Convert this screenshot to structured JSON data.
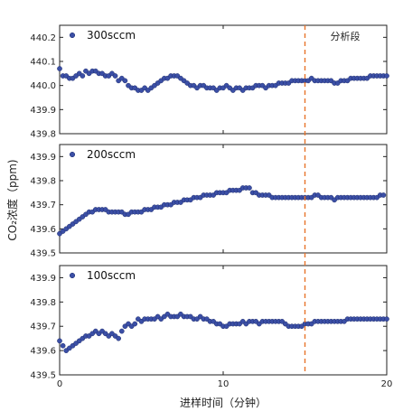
{
  "chart_data": {
    "type": "scatter",
    "xlabel": "进样时间（分钟）",
    "ylabel": "CO₂浓度（ppm)",
    "xlim": [
      0,
      20
    ],
    "x_ticks": [
      "0",
      "10",
      "20"
    ],
    "marker_color": "#3b4fa6",
    "marker_edge": "#1f2d6e",
    "dashed_line_color": "#e8742a",
    "dashed_line_x": 15,
    "annotation": "分析段",
    "panels": [
      {
        "legend": "300sccm",
        "ylim": [
          439.8,
          440.25
        ],
        "y_ticks": [
          "440.2",
          "440.1",
          "440.0",
          "439.9",
          "439.8"
        ],
        "x": [
          0,
          0.2,
          0.4,
          0.6,
          0.8,
          1.0,
          1.2,
          1.4,
          1.6,
          1.8,
          2.0,
          2.2,
          2.4,
          2.6,
          2.8,
          3.0,
          3.2,
          3.4,
          3.6,
          3.8,
          4.0,
          4.2,
          4.4,
          4.6,
          4.8,
          5.0,
          5.2,
          5.4,
          5.6,
          5.8,
          6.0,
          6.2,
          6.4,
          6.6,
          6.8,
          7.0,
          7.2,
          7.4,
          7.6,
          7.8,
          8.0,
          8.2,
          8.4,
          8.6,
          8.8,
          9.0,
          9.2,
          9.4,
          9.6,
          9.8,
          10.0,
          10.2,
          10.4,
          10.6,
          10.8,
          11.0,
          11.2,
          11.4,
          11.6,
          11.8,
          12.0,
          12.2,
          12.4,
          12.6,
          12.8,
          13.0,
          13.2,
          13.4,
          13.6,
          13.8,
          14.0,
          14.2,
          14.4,
          14.6,
          14.8,
          15.0,
          15.2,
          15.4,
          15.6,
          15.8,
          16.0,
          16.2,
          16.4,
          16.6,
          16.8,
          17.0,
          17.2,
          17.4,
          17.6,
          17.8,
          18.0,
          18.2,
          18.4,
          18.6,
          18.8,
          19.0,
          19.2,
          19.4,
          19.6,
          19.8,
          20.0
        ],
        "y": [
          440.07,
          440.04,
          440.04,
          440.03,
          440.03,
          440.04,
          440.05,
          440.04,
          440.06,
          440.05,
          440.06,
          440.06,
          440.05,
          440.05,
          440.04,
          440.04,
          440.05,
          440.04,
          440.02,
          440.03,
          440.02,
          440.0,
          439.99,
          439.99,
          439.98,
          439.98,
          439.99,
          439.98,
          439.99,
          440.0,
          440.01,
          440.02,
          440.03,
          440.03,
          440.04,
          440.04,
          440.04,
          440.03,
          440.02,
          440.01,
          440.0,
          440.0,
          439.99,
          440.0,
          440.0,
          439.99,
          439.99,
          439.99,
          439.98,
          439.99,
          439.99,
          440.0,
          439.99,
          439.98,
          439.99,
          439.99,
          439.98,
          439.99,
          439.99,
          439.99,
          440.0,
          440.0,
          440.0,
          439.99,
          440.0,
          440.0,
          440.0,
          440.01,
          440.01,
          440.01,
          440.01,
          440.02,
          440.02,
          440.02,
          440.02,
          440.02,
          440.02,
          440.03,
          440.02,
          440.02,
          440.02,
          440.02,
          440.02,
          440.02,
          440.01,
          440.01,
          440.02,
          440.02,
          440.02,
          440.03,
          440.03,
          440.03,
          440.03,
          440.03,
          440.03,
          440.04,
          440.04,
          440.04,
          440.04,
          440.04,
          440.04
        ]
      },
      {
        "legend": "200sccm",
        "ylim": [
          439.5,
          439.95
        ],
        "y_ticks": [
          "439.9",
          "439.8",
          "439.7",
          "439.6",
          "439.5"
        ],
        "x": [
          0,
          0.2,
          0.4,
          0.6,
          0.8,
          1.0,
          1.2,
          1.4,
          1.6,
          1.8,
          2.0,
          2.2,
          2.4,
          2.6,
          2.8,
          3.0,
          3.2,
          3.4,
          3.6,
          3.8,
          4.0,
          4.2,
          4.4,
          4.6,
          4.8,
          5.0,
          5.2,
          5.4,
          5.6,
          5.8,
          6.0,
          6.2,
          6.4,
          6.6,
          6.8,
          7.0,
          7.2,
          7.4,
          7.6,
          7.8,
          8.0,
          8.2,
          8.4,
          8.6,
          8.8,
          9.0,
          9.2,
          9.4,
          9.6,
          9.8,
          10.0,
          10.2,
          10.4,
          10.6,
          10.8,
          11.0,
          11.2,
          11.4,
          11.6,
          11.8,
          12.0,
          12.2,
          12.4,
          12.6,
          12.8,
          13.0,
          13.2,
          13.4,
          13.6,
          13.8,
          14.0,
          14.2,
          14.4,
          14.6,
          14.8,
          15.0,
          15.2,
          15.4,
          15.6,
          15.8,
          16.0,
          16.2,
          16.4,
          16.6,
          16.8,
          17.0,
          17.2,
          17.4,
          17.6,
          17.8,
          18.0,
          18.2,
          18.4,
          18.6,
          18.8,
          19.0,
          19.2,
          19.4,
          19.6,
          19.8
        ],
        "y": [
          439.58,
          439.59,
          439.6,
          439.61,
          439.62,
          439.63,
          439.64,
          439.65,
          439.66,
          439.67,
          439.67,
          439.68,
          439.68,
          439.68,
          439.68,
          439.67,
          439.67,
          439.67,
          439.67,
          439.67,
          439.66,
          439.66,
          439.67,
          439.67,
          439.67,
          439.67,
          439.68,
          439.68,
          439.68,
          439.69,
          439.69,
          439.69,
          439.7,
          439.7,
          439.7,
          439.71,
          439.71,
          439.71,
          439.72,
          439.72,
          439.72,
          439.73,
          439.73,
          439.73,
          439.74,
          439.74,
          439.74,
          439.74,
          439.75,
          439.75,
          439.75,
          439.75,
          439.76,
          439.76,
          439.76,
          439.76,
          439.77,
          439.77,
          439.77,
          439.75,
          439.75,
          439.74,
          439.74,
          439.74,
          439.74,
          439.73,
          439.73,
          439.73,
          439.73,
          439.73,
          439.73,
          439.73,
          439.73,
          439.73,
          439.73,
          439.73,
          439.73,
          439.73,
          439.74,
          439.74,
          439.73,
          439.73,
          439.73,
          439.73,
          439.72,
          439.73,
          439.73,
          439.73,
          439.73,
          439.73,
          439.73,
          439.73,
          439.73,
          439.73,
          439.73,
          439.73,
          439.73,
          439.73,
          439.74,
          439.74
        ]
      },
      {
        "legend": "100sccm",
        "ylim": [
          439.5,
          439.95
        ],
        "y_ticks": [
          "439.9",
          "439.8",
          "439.7",
          "439.6",
          "439.5"
        ],
        "x": [
          0,
          0.2,
          0.4,
          0.6,
          0.8,
          1.0,
          1.2,
          1.4,
          1.6,
          1.8,
          2.0,
          2.2,
          2.4,
          2.6,
          2.8,
          3.0,
          3.2,
          3.4,
          3.6,
          3.8,
          4.0,
          4.2,
          4.4,
          4.6,
          4.8,
          5.0,
          5.2,
          5.4,
          5.6,
          5.8,
          6.0,
          6.2,
          6.4,
          6.6,
          6.8,
          7.0,
          7.2,
          7.4,
          7.6,
          7.8,
          8.0,
          8.2,
          8.4,
          8.6,
          8.8,
          9.0,
          9.2,
          9.4,
          9.6,
          9.8,
          10.0,
          10.2,
          10.4,
          10.6,
          10.8,
          11.0,
          11.2,
          11.4,
          11.6,
          11.8,
          12.0,
          12.2,
          12.4,
          12.6,
          12.8,
          13.0,
          13.2,
          13.4,
          13.6,
          13.8,
          14.0,
          14.2,
          14.4,
          14.6,
          14.8,
          15.0,
          15.2,
          15.4,
          15.6,
          15.8,
          16.0,
          16.2,
          16.4,
          16.6,
          16.8,
          17.0,
          17.2,
          17.4,
          17.6,
          17.8,
          18.0,
          18.2,
          18.4,
          18.6,
          18.8,
          19.0,
          19.2,
          19.4,
          19.6,
          19.8,
          20.0
        ],
        "y": [
          439.64,
          439.62,
          439.6,
          439.61,
          439.62,
          439.63,
          439.64,
          439.65,
          439.66,
          439.66,
          439.67,
          439.68,
          439.67,
          439.68,
          439.67,
          439.66,
          439.67,
          439.66,
          439.65,
          439.68,
          439.7,
          439.71,
          439.7,
          439.71,
          439.73,
          439.72,
          439.73,
          439.73,
          439.73,
          439.73,
          439.74,
          439.73,
          439.74,
          439.75,
          439.74,
          439.74,
          439.74,
          439.75,
          439.74,
          439.74,
          439.74,
          439.73,
          439.73,
          439.74,
          439.73,
          439.73,
          439.72,
          439.72,
          439.71,
          439.71,
          439.7,
          439.7,
          439.71,
          439.71,
          439.71,
          439.71,
          439.72,
          439.71,
          439.72,
          439.72,
          439.72,
          439.71,
          439.72,
          439.72,
          439.72,
          439.72,
          439.72,
          439.72,
          439.72,
          439.71,
          439.7,
          439.7,
          439.7,
          439.7,
          439.7,
          439.71,
          439.71,
          439.71,
          439.72,
          439.72,
          439.72,
          439.72,
          439.72,
          439.72,
          439.72,
          439.72,
          439.72,
          439.72,
          439.73,
          439.73,
          439.73,
          439.73,
          439.73,
          439.73,
          439.73,
          439.73,
          439.73,
          439.73,
          439.73,
          439.73,
          439.73
        ]
      }
    ]
  }
}
